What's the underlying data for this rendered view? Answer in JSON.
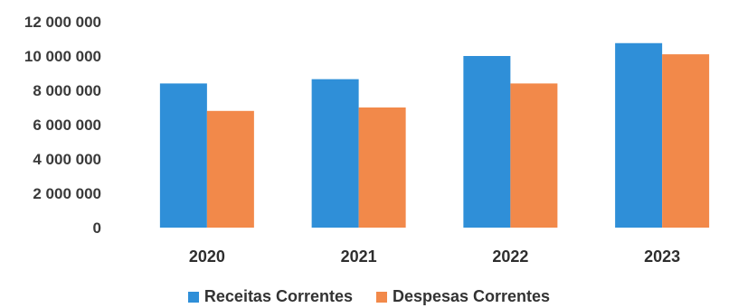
{
  "chart_data": {
    "type": "bar",
    "categories": [
      "2020",
      "2021",
      "2022",
      "2023"
    ],
    "series": [
      {
        "name": "Receitas Correntes",
        "values": [
          8400000,
          8650000,
          10000000,
          10750000
        ],
        "color": "#2F8FD8"
      },
      {
        "name": "Despesas Correntes",
        "values": [
          6800000,
          7000000,
          8400000,
          10100000
        ],
        "color": "#F2894A"
      }
    ],
    "ylim": [
      0,
      12000000
    ],
    "yticks": [
      0,
      2000000,
      4000000,
      6000000,
      8000000,
      10000000,
      12000000
    ],
    "ytick_labels": [
      "0",
      "2 000 000",
      "4 000 000",
      "6 000 000",
      "8 000 000",
      "10 000 000",
      "12 000 000"
    ],
    "grid": false,
    "legend_position": "bottom",
    "title": "",
    "xlabel": "",
    "ylabel": ""
  }
}
